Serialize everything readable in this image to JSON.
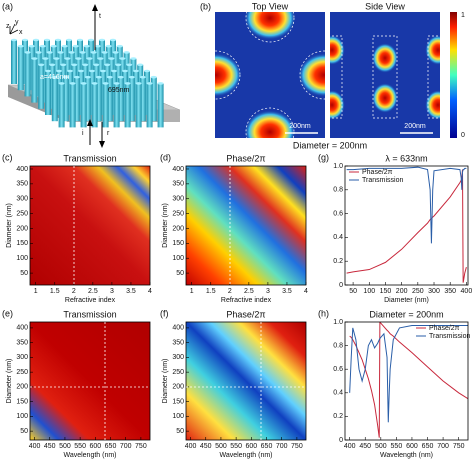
{
  "panel_labels": [
    "(a)",
    "(b)",
    "(c)",
    "(d)",
    "(g)",
    "(e)",
    "(f)",
    "(h)"
  ],
  "a": {
    "labels": [
      "z",
      "y",
      "x",
      "t",
      "a=416nm",
      "695nm",
      "i",
      "r"
    ]
  },
  "b": {
    "top_view": "Top View",
    "side_view": "Side View",
    "scale_bar_1": "200nm",
    "scale_bar_2": "200nm",
    "caption": "Diameter = 200nm",
    "colorbar_ticks": [
      1,
      0
    ]
  },
  "chart_data": [
    {
      "type": "heatmap",
      "title": "Transmission",
      "xlabel": "Refractive index",
      "ylabel": "Diameter (nm)",
      "xlim": [
        0.85,
        4.0
      ],
      "ylim": [
        10,
        410
      ],
      "xticks": [
        1,
        1.5,
        2,
        2.5,
        3,
        3.5,
        4
      ],
      "yticks": [
        50,
        100,
        150,
        200,
        250,
        300,
        350,
        400
      ]
    },
    {
      "type": "heatmap",
      "title": "Phase/2π",
      "xlabel": "Refractive index",
      "ylabel": "Diameter (nm)",
      "xlim": [
        0.85,
        4.0
      ],
      "ylim": [
        10,
        410
      ],
      "xticks": [
        1,
        1.5,
        2,
        2.5,
        3,
        3.5,
        4
      ],
      "yticks": [
        50,
        100,
        150,
        200,
        250,
        300,
        350,
        400
      ]
    },
    {
      "type": "line",
      "title": "λ = 633nm",
      "xlabel": "Diameter (nm)",
      "xlim": [
        25,
        405
      ],
      "ylim": [
        0,
        1.0
      ],
      "xticks": [
        50,
        100,
        150,
        200,
        250,
        300,
        350,
        400
      ],
      "yticks": [
        0,
        0.2,
        0.4,
        0.6,
        0.8,
        {
          "value": 1,
          "label": "1.0"
        }
      ],
      "legend": "upper left",
      "x": [
        30,
        50,
        100,
        150,
        200,
        250,
        280,
        288,
        292,
        296,
        300,
        350,
        380,
        384,
        386,
        388,
        390,
        392,
        395,
        400
      ],
      "series": [
        {
          "name": "Phase/2π",
          "color": "#c8283c",
          "values": [
            0.1,
            0.11,
            0.13,
            0.19,
            0.3,
            0.44,
            0.52,
            0.55,
            0.56,
            0.57,
            0.58,
            0.74,
            0.86,
            0.88,
            0.9,
            0.97,
            0.02,
            0.05,
            0.1,
            0.15
          ]
        },
        {
          "name": "Transmission",
          "color": "#2a5ea8",
          "values": [
            0.97,
            0.97,
            0.98,
            0.98,
            0.98,
            0.99,
            0.97,
            0.8,
            0.35,
            0.8,
            0.96,
            0.98,
            0.97,
            0.9,
            0.8,
            0.95,
            0.97,
            0.97,
            0.98,
            0.98
          ]
        }
      ]
    },
    {
      "type": "heatmap",
      "title": "Transmission",
      "xlabel": "Wavelength (nm)",
      "ylabel": "Diameter (nm)",
      "xlim": [
        385,
        780
      ],
      "ylim": [
        20,
        420
      ],
      "xticks": [
        400,
        450,
        500,
        550,
        600,
        650,
        700,
        750
      ],
      "yticks": [
        50,
        100,
        150,
        200,
        250,
        300,
        350,
        400
      ]
    },
    {
      "type": "heatmap",
      "title": "Phase/2π",
      "xlabel": "Wavelength (nm)",
      "ylabel": "Diameter (nm)",
      "xlim": [
        385,
        780
      ],
      "ylim": [
        20,
        420
      ],
      "xticks": [
        400,
        450,
        500,
        550,
        600,
        650,
        700,
        750
      ],
      "yticks": [
        50,
        100,
        150,
        200,
        250,
        300,
        350,
        400
      ]
    },
    {
      "type": "line",
      "title": "Diameter = 200nm",
      "xlabel": "Wavelength (nm)",
      "xlim": [
        385,
        780
      ],
      "ylim": [
        0,
        1.0
      ],
      "xticks": [
        400,
        450,
        500,
        550,
        600,
        650,
        700,
        750
      ],
      "yticks": [
        0,
        0.2,
        0.4,
        0.6,
        0.8,
        {
          "value": 1,
          "label": "1.0"
        }
      ],
      "legend": "upper right",
      "x": [
        400,
        405,
        410,
        420,
        430,
        440,
        450,
        460,
        470,
        480,
        490,
        495,
        497,
        500,
        510,
        520,
        524,
        527,
        530,
        540,
        560,
        600,
        650,
        700,
        750,
        780
      ],
      "series": [
        {
          "name": "Phase/2π",
          "color": "#c8283c",
          "values": [
            0.88,
            0.87,
            0.85,
            0.8,
            0.74,
            0.68,
            0.6,
            0.52,
            0.42,
            0.3,
            0.12,
            0.02,
            1.0,
            0.99,
            0.96,
            0.93,
            0.92,
            0.91,
            0.9,
            0.88,
            0.83,
            0.74,
            0.62,
            0.5,
            0.4,
            0.35
          ]
        },
        {
          "name": "Transmission",
          "color": "#2a5ea8",
          "values": [
            0.4,
            0.7,
            0.95,
            0.85,
            0.6,
            0.5,
            0.6,
            0.8,
            0.85,
            0.78,
            0.82,
            0.85,
            0.86,
            0.87,
            0.9,
            0.7,
            0.15,
            0.4,
            0.6,
            0.85,
            0.95,
            0.97,
            0.97,
            0.97,
            0.97,
            0.97
          ]
        }
      ]
    }
  ]
}
